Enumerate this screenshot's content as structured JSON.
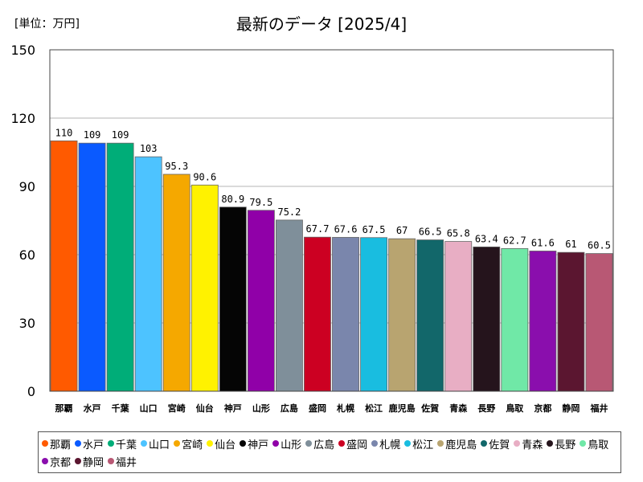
{
  "chart_data": {
    "type": "bar",
    "title": "最新のデータ [2025/4]",
    "unit_label": "[単位：万円]",
    "ylim": [
      0,
      150
    ],
    "yticks": [
      "0",
      "30",
      "60",
      "90",
      "120",
      "150"
    ],
    "ytick_values": [
      0,
      30,
      60,
      90,
      120,
      150
    ],
    "grid": true,
    "legend_position": "bottom",
    "categories": [
      "那覇",
      "水戸",
      "千葉",
      "山口",
      "宮崎",
      "仙台",
      "神戸",
      "山形",
      "広島",
      "盛岡",
      "札幌",
      "松江",
      "鹿児島",
      "佐賀",
      "青森",
      "長野",
      "鳥取",
      "京都",
      "静岡",
      "福井"
    ],
    "values": [
      110,
      109,
      109,
      103,
      95.3,
      90.6,
      80.9,
      79.5,
      75.2,
      67.7,
      67.6,
      67.5,
      67,
      66.5,
      65.8,
      63.4,
      62.7,
      61.6,
      61,
      60.5
    ],
    "value_labels": [
      "110",
      "109",
      "109",
      "103",
      "95.3",
      "90.6",
      "80.9",
      "79.5",
      "75.2",
      "67.7",
      "67.6",
      "67.5",
      "67",
      "66.5",
      "65.8",
      "63.4",
      "62.7",
      "61.6",
      "61",
      "60.5"
    ],
    "colors": [
      "#ff5a00",
      "#0a5aff",
      "#00ad78",
      "#4dc3ff",
      "#f5a800",
      "#fff200",
      "#050505",
      "#9000a8",
      "#7f8f9a",
      "#cc0022",
      "#7a86ac",
      "#19bde0",
      "#b8a470",
      "#12676a",
      "#e8aec4",
      "#25141c",
      "#70e8a7",
      "#8a0ead",
      "#5b1630",
      "#b85874"
    ]
  }
}
